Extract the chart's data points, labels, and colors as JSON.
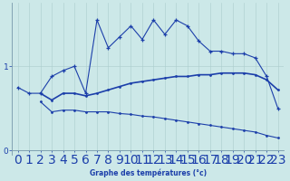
{
  "x": [
    0,
    1,
    2,
    3,
    4,
    5,
    6,
    7,
    8,
    9,
    10,
    11,
    12,
    13,
    14,
    15,
    16,
    17,
    18,
    19,
    20,
    21,
    22,
    23
  ],
  "line1": [
    0.75,
    0.68,
    0.68,
    0.88,
    0.95,
    1.0,
    0.68,
    1.55,
    1.22,
    1.35,
    1.48,
    1.32,
    1.55,
    1.38,
    1.55,
    1.48,
    1.3,
    1.18,
    1.18,
    1.15,
    1.15,
    1.1,
    0.88,
    0.5
  ],
  "line2": [
    null,
    null,
    0.68,
    0.6,
    0.68,
    0.68,
    0.65,
    0.68,
    0.72,
    0.76,
    0.8,
    0.82,
    0.84,
    0.86,
    0.88,
    0.88,
    0.9,
    0.9,
    0.92,
    0.92,
    0.92,
    0.9,
    0.84,
    0.72
  ],
  "line3": [
    null,
    null,
    0.58,
    0.46,
    0.48,
    0.48,
    0.46,
    0.46,
    0.46,
    0.44,
    0.43,
    0.41,
    0.4,
    0.38,
    0.36,
    0.34,
    0.32,
    0.3,
    0.28,
    0.26,
    0.24,
    0.22,
    0.18,
    0.15
  ],
  "line_color": "#1c3faa",
  "bg_color": "#cce8e8",
  "grid_color": "#aacccc",
  "xlabel": "Graphe des températures (°c)",
  "ylim": [
    -0.05,
    1.75
  ],
  "xlim": [
    -0.5,
    23.5
  ],
  "yticks": [
    0,
    1
  ],
  "xticks": [
    0,
    1,
    2,
    3,
    4,
    5,
    6,
    7,
    8,
    9,
    10,
    11,
    12,
    13,
    14,
    15,
    16,
    17,
    18,
    19,
    20,
    21,
    22,
    23
  ]
}
